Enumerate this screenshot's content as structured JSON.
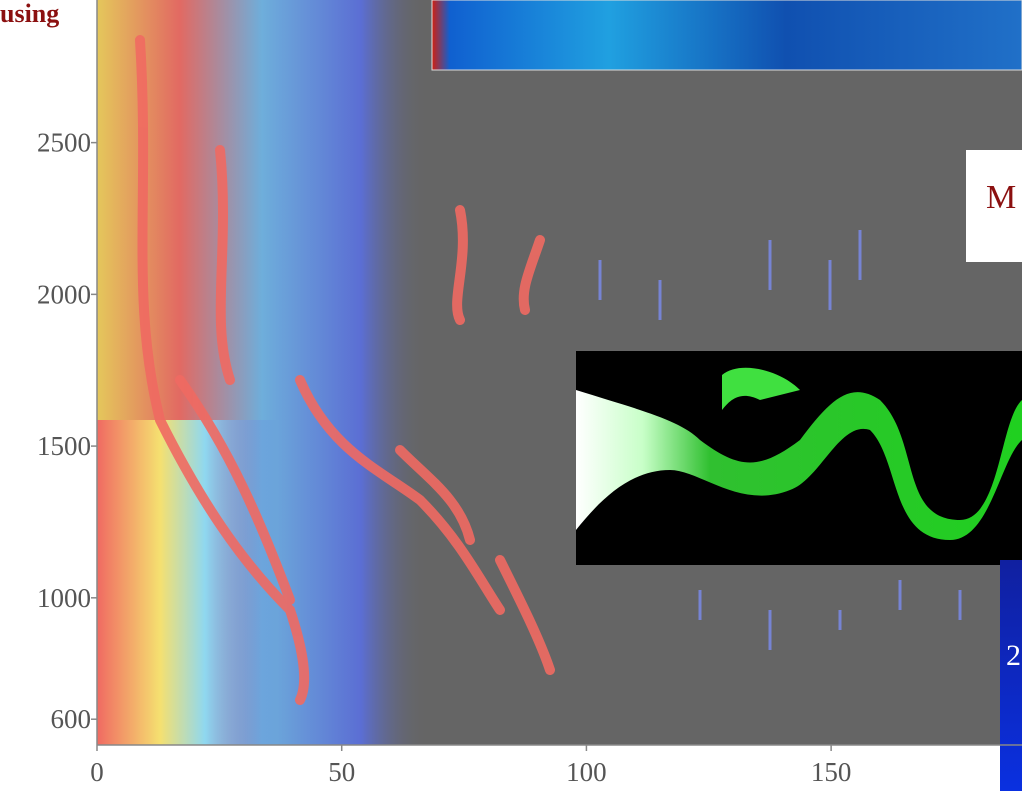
{
  "chart_data": {
    "type": "heatmap",
    "xlim": [
      0,
      189
    ],
    "ylim": [
      515,
      2970
    ],
    "xticks": [
      0,
      50,
      100,
      150
    ],
    "yticks": [
      600,
      1000,
      1500,
      2000,
      2500
    ],
    "annotations": [
      "using",
      "M",
      "2"
    ]
  }
}
